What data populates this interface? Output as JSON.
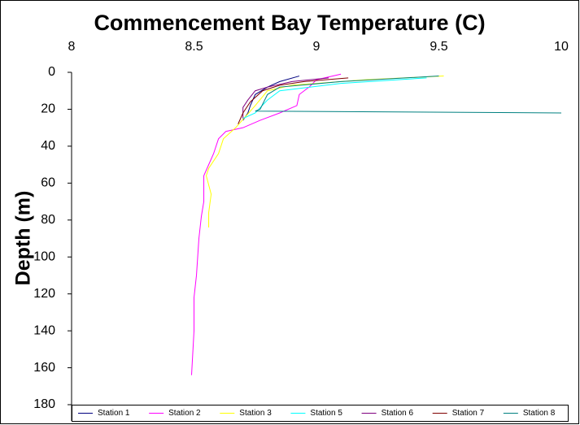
{
  "chart_data": {
    "type": "line",
    "title": "Commencement Bay Temperature (C)",
    "y_label": "Depth (m)",
    "xlim": [
      8,
      10
    ],
    "xticks": [
      8,
      8.5,
      9,
      9.5,
      10
    ],
    "ylim": [
      0,
      180
    ],
    "yticks": [
      0,
      20,
      40,
      60,
      80,
      100,
      120,
      140,
      160,
      180
    ],
    "y_inverted": true,
    "x_axis_position": "top",
    "grid": false,
    "legend": "bottom",
    "series": [
      {
        "name": "Station 1",
        "color": "#000080",
        "x": [
          8.93,
          8.85,
          8.8,
          8.75,
          8.73,
          8.72,
          8.7
        ],
        "values": [
          2,
          5,
          8,
          12,
          18,
          22,
          26
        ]
      },
      {
        "name": "Station 2",
        "color": "#ff00ff",
        "x": [
          9.1,
          9.0,
          8.97,
          8.93,
          8.92,
          8.85,
          8.77,
          8.7,
          8.63,
          8.6,
          8.58,
          8.56,
          8.54,
          8.54,
          8.53,
          8.52,
          8.51,
          8.5,
          8.5,
          8.49
        ],
        "values": [
          1,
          4,
          8,
          12,
          18,
          22,
          26,
          30,
          32,
          36,
          44,
          50,
          56,
          70,
          78,
          90,
          110,
          122,
          140,
          164
        ]
      },
      {
        "name": "Station 3",
        "color": "#ffff00",
        "x": [
          9.52,
          9.2,
          8.9,
          8.8,
          8.75,
          8.71,
          8.67,
          8.62,
          8.6,
          8.56,
          8.55,
          8.57,
          8.56,
          8.56
        ],
        "values": [
          2,
          4,
          7,
          10,
          18,
          24,
          30,
          36,
          44,
          52,
          56,
          66,
          76,
          84
        ]
      },
      {
        "name": "Station 5",
        "color": "#00ffff",
        "x": [
          9.45,
          9.1,
          8.85,
          8.8,
          8.75,
          8.7
        ],
        "values": [
          3,
          6,
          10,
          15,
          22,
          25
        ]
      },
      {
        "name": "Station 6",
        "color": "#800080",
        "x": [
          9.05,
          8.9,
          8.8,
          8.75,
          8.72,
          8.7,
          8.7
        ],
        "values": [
          3,
          5,
          8,
          10,
          15,
          19,
          25
        ]
      },
      {
        "name": "Station 7",
        "color": "#800000",
        "x": [
          9.13,
          8.95,
          8.85,
          8.78,
          8.73,
          8.7,
          8.68
        ],
        "values": [
          3,
          5,
          7,
          10,
          16,
          22,
          28
        ]
      },
      {
        "name": "Station 8",
        "color": "#008080",
        "x": [
          9.5,
          9.1,
          8.85,
          8.8,
          8.77,
          8.75,
          10
        ],
        "values": [
          2,
          5,
          8,
          12,
          20,
          21,
          22
        ]
      }
    ]
  }
}
